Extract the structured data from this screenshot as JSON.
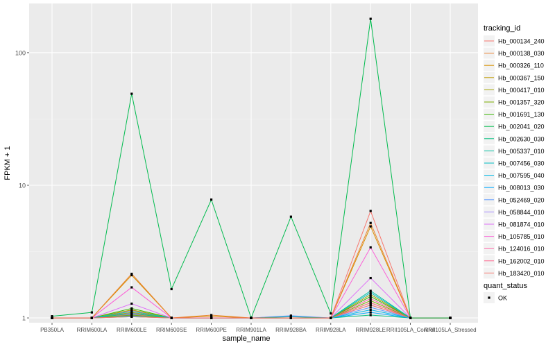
{
  "chart_data": {
    "type": "line",
    "xlabel": "sample_name",
    "ylabel": "FPKM + 1",
    "y_scale": "log10",
    "ylim": [
      0.92,
      235
    ],
    "y_ticks": [
      {
        "value": 1,
        "label": "1"
      },
      {
        "value": 10,
        "label": "10"
      },
      {
        "value": 100,
        "label": "100"
      }
    ],
    "categories": [
      "PB350LA",
      "RRIM600LA",
      "RRIM600LE",
      "RRIM600SE",
      "RRIM600PE",
      "RRIM901LA",
      "RRIM928BA",
      "RRIM928LA",
      "RRIM928LE",
      "RRII105LA_Control",
      "RRII105LA_Stressed"
    ],
    "grid": true,
    "legend_placement": "right",
    "legend": {
      "color_title": "tracking_id",
      "shape_title": "quant_status",
      "shape_entries": [
        {
          "label": "OK",
          "shape": "square"
        }
      ]
    },
    "series": [
      {
        "name": "Hb_000134_240",
        "color": "#F8766D",
        "values": [
          1,
          1,
          1.02,
          1,
          1,
          1,
          1,
          1,
          6.4,
          1,
          1
        ]
      },
      {
        "name": "Hb_000138_030",
        "color": "#EA8331",
        "values": [
          1,
          1,
          2.15,
          1,
          1.05,
          1,
          1,
          1,
          5.2,
          1,
          1
        ]
      },
      {
        "name": "Hb_000326_110",
        "color": "#D89000",
        "values": [
          1,
          1,
          2.1,
          1,
          1.03,
          1,
          1,
          1,
          4.9,
          1,
          1
        ]
      },
      {
        "name": "Hb_000367_150",
        "color": "#C09B00",
        "values": [
          1,
          1,
          1.1,
          1,
          1,
          1,
          1,
          1,
          1.3,
          1,
          1
        ]
      },
      {
        "name": "Hb_000417_010",
        "color": "#A3A500",
        "values": [
          1,
          1,
          1.15,
          1,
          1,
          1,
          1,
          1,
          1.5,
          1,
          1
        ]
      },
      {
        "name": "Hb_001357_320",
        "color": "#7CAE00",
        "values": [
          1,
          1,
          1.05,
          1,
          1,
          1,
          1,
          1,
          1.35,
          1,
          1
        ]
      },
      {
        "name": "Hb_001691_130",
        "color": "#39B600",
        "values": [
          1,
          1,
          1.18,
          1,
          1,
          1,
          1,
          1,
          1.45,
          1,
          1
        ]
      },
      {
        "name": "Hb_002041_020",
        "color": "#00BB4E",
        "values": [
          1.03,
          1.1,
          49,
          1.65,
          7.8,
          1,
          5.8,
          1.08,
          180,
          1,
          1
        ]
      },
      {
        "name": "Hb_002630_030",
        "color": "#00BF7D",
        "values": [
          1,
          1,
          1.02,
          1,
          1,
          1,
          1,
          1,
          1.05,
          1,
          1
        ]
      },
      {
        "name": "Hb_005337_010",
        "color": "#00C1A3",
        "values": [
          1,
          1,
          1.08,
          1,
          1,
          1,
          1.02,
          1,
          1.6,
          1,
          1
        ]
      },
      {
        "name": "Hb_007456_030",
        "color": "#00BFC4",
        "values": [
          1,
          1,
          1.12,
          1,
          1,
          1,
          1,
          1,
          1.55,
          1,
          1
        ]
      },
      {
        "name": "Hb_007595_040",
        "color": "#00B8E7",
        "values": [
          1,
          1,
          1.03,
          1,
          1,
          1,
          1,
          1,
          1.15,
          1,
          1
        ]
      },
      {
        "name": "Hb_008013_030",
        "color": "#00A9FF",
        "values": [
          1,
          1,
          1.04,
          1,
          1,
          1,
          1,
          1,
          1.1,
          1,
          1
        ]
      },
      {
        "name": "Hb_052469_020",
        "color": "#619CFF",
        "values": [
          1,
          1,
          1.06,
          1,
          1,
          1,
          1.04,
          1,
          1.2,
          1,
          1
        ]
      },
      {
        "name": "Hb_058844_010",
        "color": "#A58AFF",
        "values": [
          1,
          1,
          1.09,
          1,
          1,
          1,
          1.03,
          1,
          1.25,
          1,
          1
        ]
      },
      {
        "name": "Hb_081874_010",
        "color": "#DF70F8",
        "values": [
          1,
          1,
          1.28,
          1,
          1,
          1,
          1,
          1,
          2.0,
          1,
          1
        ]
      },
      {
        "name": "Hb_105785_010",
        "color": "#FB61D7",
        "values": [
          1,
          1,
          1.7,
          1,
          1,
          1,
          1,
          1,
          3.4,
          1,
          1
        ]
      },
      {
        "name": "Hb_124016_010",
        "color": "#FF66A8",
        "values": [
          1,
          1,
          1.14,
          1,
          1,
          1,
          1,
          1,
          1.4,
          1,
          1
        ]
      },
      {
        "name": "Hb_162002_010",
        "color": "#FF6C91",
        "values": [
          1,
          1,
          1.07,
          1,
          1,
          1,
          1,
          1,
          1.3,
          1,
          1
        ]
      },
      {
        "name": "Hb_183420_010",
        "color": "#F8766D",
        "values": [
          1,
          1,
          1.05,
          1,
          1,
          1,
          1,
          1,
          1.25,
          1,
          1
        ]
      }
    ]
  },
  "colors": {
    "panel_background": "#EBEBEB",
    "grid_major": "#FFFFFF",
    "grid_minor": "#F5F5F5",
    "point": "#000000",
    "text": "#000000"
  }
}
